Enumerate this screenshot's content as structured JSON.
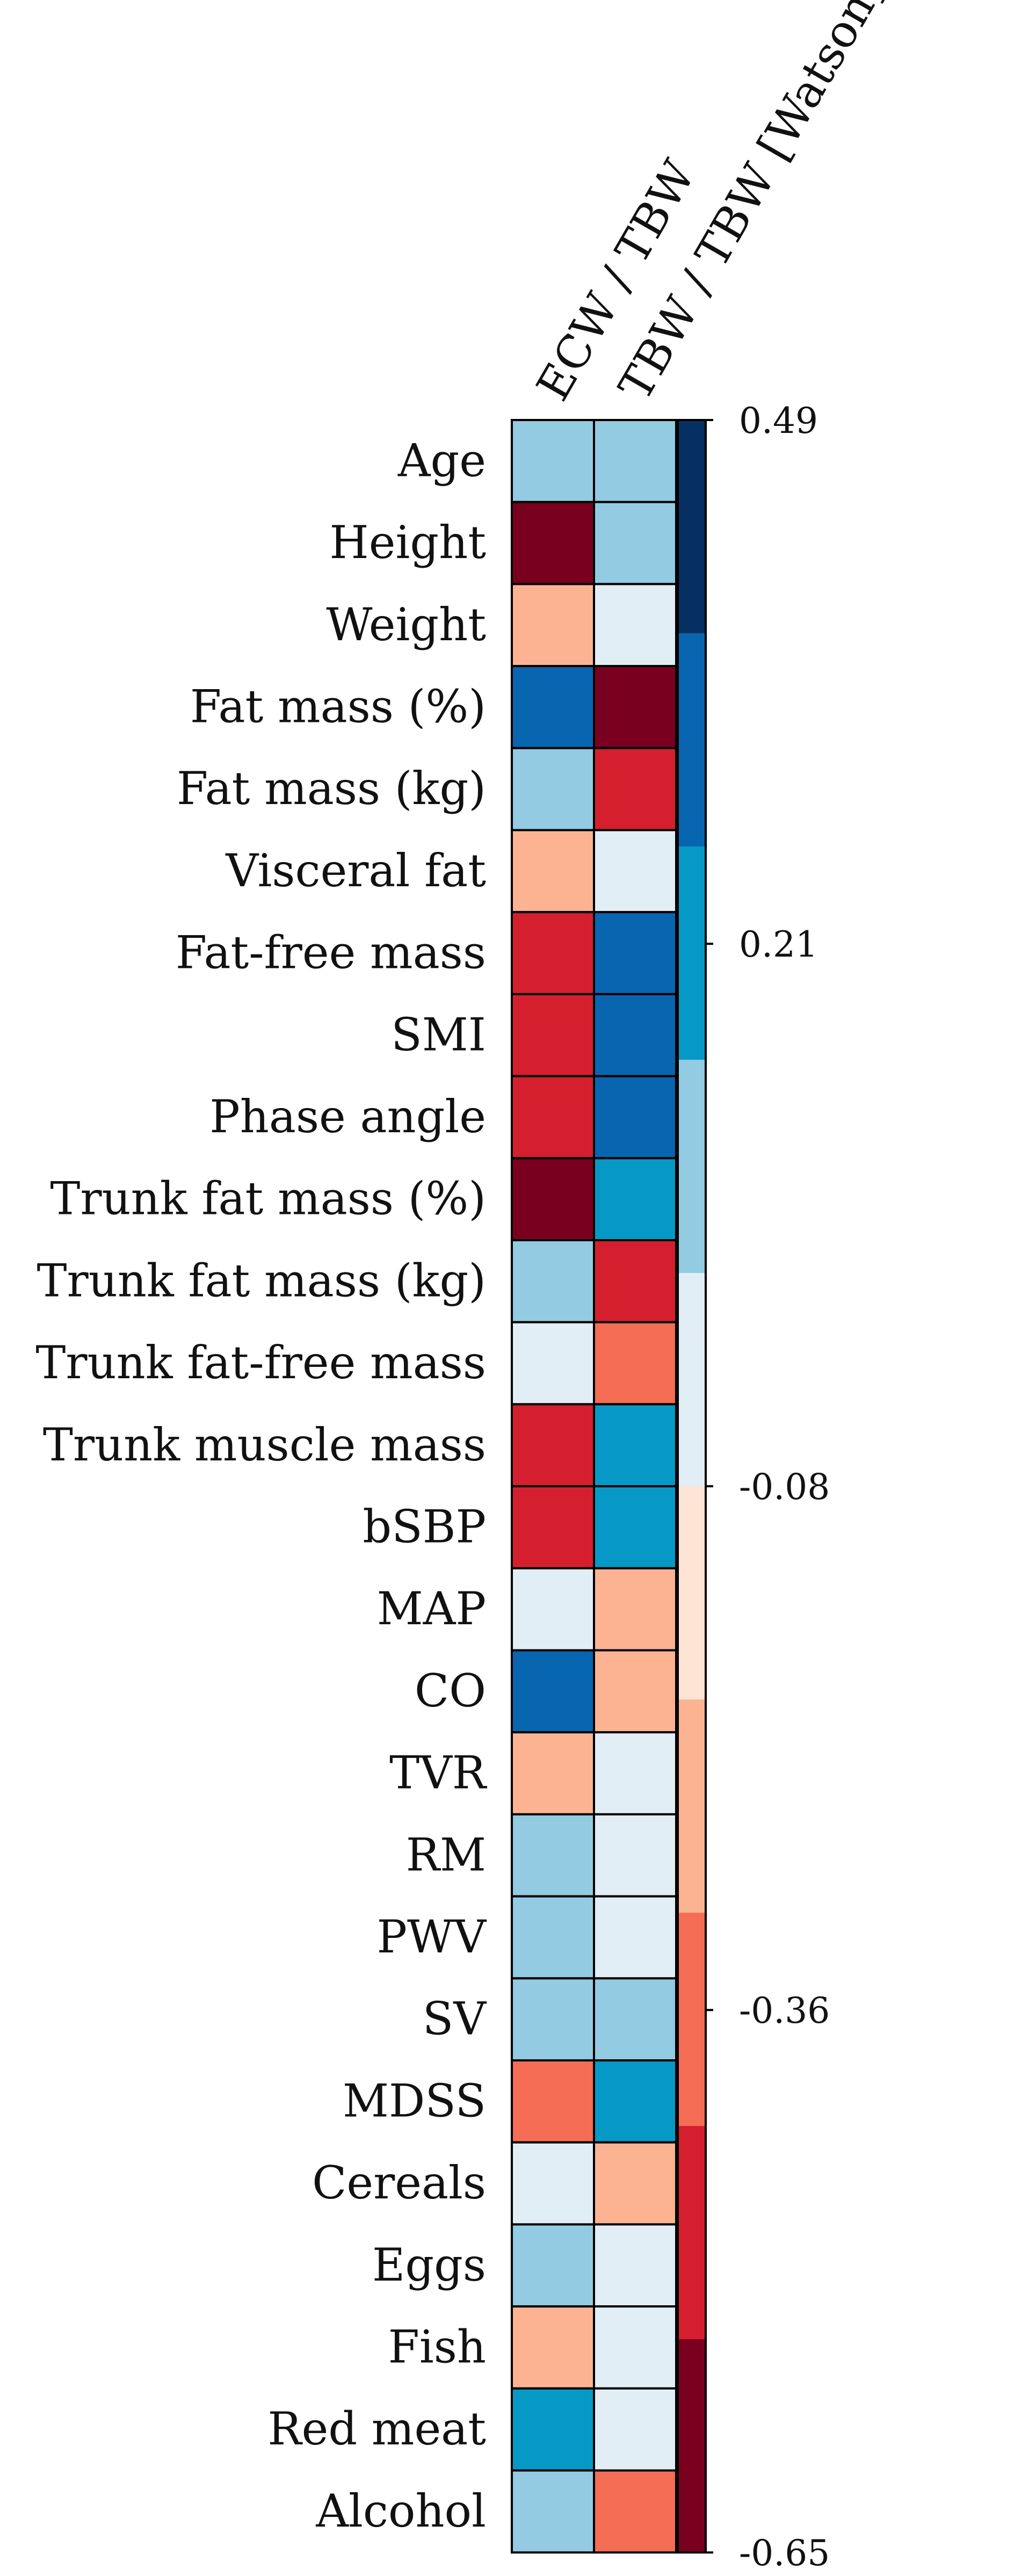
{
  "chart_data": {
    "type": "heatmap",
    "columns": [
      "ECW / TBW",
      "TBW / TBW [Watson]"
    ],
    "rows": [
      "Age",
      "Height",
      "Weight",
      "Fat mass (%)",
      "Fat mass (kg)",
      "Visceral fat",
      "Fat-free mass",
      "SMI",
      "Phase angle",
      "Trunk fat mass (%)",
      "Trunk fat mass (kg)",
      "Trunk fat-free mass",
      "Trunk muscle mass",
      "bSBP",
      "MAP",
      "CO",
      "TVR",
      "RM",
      "PWV",
      "SV",
      "MDSS",
      "Cereals",
      "Eggs",
      "Fish",
      "Red meat",
      "Alcohol"
    ],
    "values": [
      [
        0.15,
        0.15
      ],
      [
        -0.6,
        0.15
      ],
      [
        -0.2,
        0.05
      ],
      [
        0.4,
        -0.6
      ],
      [
        0.15,
        -0.45
      ],
      [
        -0.2,
        0.05
      ],
      [
        -0.45,
        0.4
      ],
      [
        -0.45,
        0.4
      ],
      [
        -0.45,
        0.4
      ],
      [
        -0.6,
        0.28
      ],
      [
        0.15,
        -0.45
      ],
      [
        0.05,
        -0.3
      ],
      [
        -0.45,
        0.28
      ],
      [
        -0.45,
        0.28
      ],
      [
        0.05,
        -0.2
      ],
      [
        0.4,
        -0.2
      ],
      [
        -0.2,
        0.05
      ],
      [
        0.15,
        0.05
      ],
      [
        0.15,
        0.05
      ],
      [
        0.15,
        0.15
      ],
      [
        -0.3,
        0.28
      ],
      [
        0.05,
        -0.2
      ],
      [
        0.15,
        0.05
      ],
      [
        -0.2,
        0.05
      ],
      [
        0.28,
        0.05
      ],
      [
        0.15,
        -0.3
      ]
    ],
    "colorbar": {
      "min": -0.65,
      "max": 0.49,
      "tick_values": [
        0.49,
        0.21,
        -0.08,
        -0.36,
        -0.65
      ],
      "tick_labels": [
        "0.49",
        "0.21",
        "-0.08",
        "-0.36",
        "-0.65"
      ],
      "bands": [
        "#053061",
        "#0865b0",
        "#0699c6",
        "#92cbe2",
        "#e2eef5",
        "#fde4d5",
        "#fbb392",
        "#f46d54",
        "#d51f2f",
        "#7a0020"
      ]
    },
    "bin_edges": [
      0.49,
      0.35,
      0.21,
      0.07,
      -0.08,
      -0.22,
      -0.36,
      -0.5,
      -0.65
    ],
    "bin_colors": [
      "#0865b0",
      "#0699c6",
      "#92cbe2",
      "#e2eef5",
      "#fbb392",
      "#f46d54",
      "#d51f2f",
      "#7a0020"
    ]
  }
}
